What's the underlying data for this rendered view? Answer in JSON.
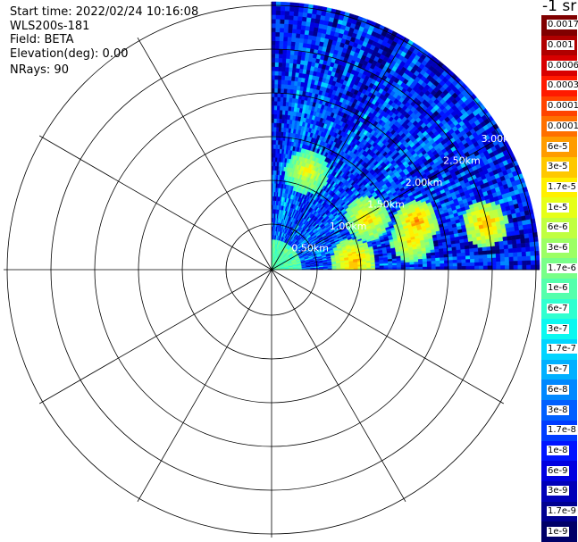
{
  "header": {
    "start_time": "Start time: 2022/02/24 10:16:08",
    "instrument": "WLS200s-181",
    "field": "Field: BETA",
    "elevation": "Elevation(deg): 0.00",
    "nrays": "NRays: 90"
  },
  "colorbar": {
    "units": "-1 sr",
    "labels": [
      "0.0017",
      "0.001",
      "0.0006",
      "0.0003",
      "0.00017",
      "0.0001",
      "6e-5",
      "3e-5",
      "1.7e-5",
      "1e-5",
      "6e-6",
      "3e-6",
      "1.7e-6",
      "1e-6",
      "6e-7",
      "3e-7",
      "1.7e-7",
      "1e-7",
      "6e-8",
      "3e-8",
      "1.7e-8",
      "1e-8",
      "6e-9",
      "3e-9",
      "1.7e-9",
      "1e-9"
    ],
    "colors": [
      "#800000",
      "#b00000",
      "#d80000",
      "#ff1a00",
      "#ff4400",
      "#ff7000",
      "#ff9c00",
      "#ffc800",
      "#fff000",
      "#e6ff18",
      "#c0ff40",
      "#9cff64",
      "#78ff88",
      "#54ffac",
      "#30ffd0",
      "#0cf8f0",
      "#00d4ff",
      "#00b0ff",
      "#0088ff",
      "#0060ff",
      "#003cff",
      "#0014ff",
      "#0000e0",
      "#0000b8",
      "#000090",
      "#000068"
    ]
  },
  "chart_data": {
    "type": "heatmap",
    "projection": "polar PPI",
    "range_rings_km": [
      0.5,
      1.0,
      1.5,
      2.0,
      2.5,
      3.0
    ],
    "ring_labels": [
      "0.50km",
      "1.00km",
      "1.50km",
      "2.00km",
      "2.50km",
      "3.00km"
    ],
    "max_range_km": 3.0,
    "azimuth_coverage_deg": [
      0,
      90
    ],
    "spoke_spacing_deg": 30,
    "nrays": 90,
    "scale": "log",
    "value_range": [
      1e-09,
      0.0017
    ],
    "typical_value": 3e-08,
    "hotspots": [
      {
        "azimuth_deg": 62,
        "range_km": 1.25,
        "value": 3e-05
      },
      {
        "azimuth_deg": 72,
        "range_km": 1.75,
        "value": 6e-05
      },
      {
        "azimuth_deg": 78,
        "range_km": 2.5,
        "value": 6e-05
      },
      {
        "azimuth_deg": 78,
        "range_km": 1.65,
        "value": 3e-05
      },
      {
        "azimuth_deg": 84,
        "range_km": 0.95,
        "value": 6e-05
      },
      {
        "azimuth_deg": 20,
        "range_km": 1.2,
        "value": 1.7e-05
      }
    ]
  }
}
